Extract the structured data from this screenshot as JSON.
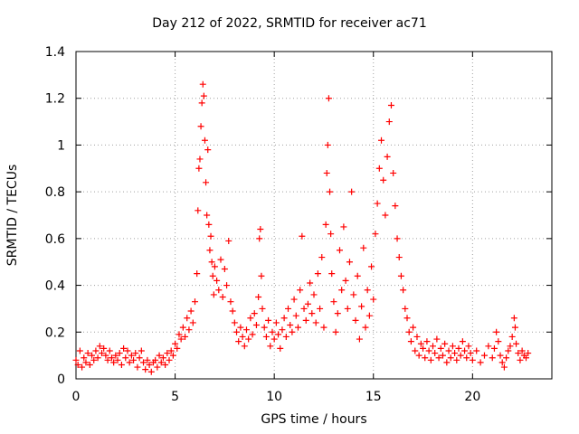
{
  "chart_data": {
    "type": "scatter",
    "title": "Day 212 of 2022, SRMTID for receiver ac71",
    "xlabel": "GPS time / hours",
    "ylabel": "SRMTID / TECUs",
    "xlim": [
      0,
      24
    ],
    "ylim": [
      0,
      1.4
    ],
    "xticks": [
      0,
      5,
      10,
      15,
      20
    ],
    "yticks": [
      0,
      0.2,
      0.4,
      0.6,
      0.8,
      1,
      1.2,
      1.4
    ],
    "ytick_labels": [
      "0",
      "0.2",
      "0.4",
      "0.6",
      "0.8",
      "1",
      "1.2",
      "1.4"
    ],
    "grid": true,
    "marker": "+",
    "color": "#ff0000",
    "series": [
      {
        "name": "SRMTID",
        "points": [
          [
            0.0,
            0.08
          ],
          [
            0.1,
            0.06
          ],
          [
            0.2,
            0.12
          ],
          [
            0.3,
            0.05
          ],
          [
            0.4,
            0.09
          ],
          [
            0.5,
            0.07
          ],
          [
            0.6,
            0.11
          ],
          [
            0.7,
            0.06
          ],
          [
            0.8,
            0.1
          ],
          [
            0.9,
            0.08
          ],
          [
            1.0,
            0.12
          ],
          [
            1.1,
            0.09
          ],
          [
            1.2,
            0.14
          ],
          [
            1.3,
            0.11
          ],
          [
            1.4,
            0.13
          ],
          [
            1.5,
            0.1
          ],
          [
            1.6,
            0.08
          ],
          [
            1.7,
            0.12
          ],
          [
            1.8,
            0.09
          ],
          [
            1.9,
            0.07
          ],
          [
            2.0,
            0.1
          ],
          [
            2.1,
            0.08
          ],
          [
            2.2,
            0.11
          ],
          [
            2.3,
            0.06
          ],
          [
            2.4,
            0.13
          ],
          [
            2.5,
            0.09
          ],
          [
            2.6,
            0.12
          ],
          [
            2.7,
            0.07
          ],
          [
            2.8,
            0.1
          ],
          [
            2.9,
            0.08
          ],
          [
            3.0,
            0.11
          ],
          [
            3.1,
            0.05
          ],
          [
            3.2,
            0.09
          ],
          [
            3.3,
            0.12
          ],
          [
            3.4,
            0.07
          ],
          [
            3.5,
            0.04
          ],
          [
            3.6,
            0.08
          ],
          [
            3.7,
            0.06
          ],
          [
            3.8,
            0.03
          ],
          [
            3.9,
            0.07
          ],
          [
            4.0,
            0.08
          ],
          [
            4.1,
            0.05
          ],
          [
            4.2,
            0.1
          ],
          [
            4.3,
            0.07
          ],
          [
            4.4,
            0.09
          ],
          [
            4.5,
            0.06
          ],
          [
            4.6,
            0.11
          ],
          [
            4.7,
            0.08
          ],
          [
            4.8,
            0.12
          ],
          [
            4.9,
            0.1
          ],
          [
            5.0,
            0.15
          ],
          [
            5.1,
            0.13
          ],
          [
            5.2,
            0.19
          ],
          [
            5.3,
            0.17
          ],
          [
            5.4,
            0.22
          ],
          [
            5.5,
            0.18
          ],
          [
            5.6,
            0.26
          ],
          [
            5.7,
            0.21
          ],
          [
            5.8,
            0.29
          ],
          [
            5.9,
            0.24
          ],
          [
            6.0,
            0.33
          ],
          [
            6.1,
            0.45
          ],
          [
            6.15,
            0.72
          ],
          [
            6.2,
            0.9
          ],
          [
            6.25,
            0.94
          ],
          [
            6.3,
            1.08
          ],
          [
            6.35,
            1.18
          ],
          [
            6.4,
            1.26
          ],
          [
            6.45,
            1.21
          ],
          [
            6.5,
            1.02
          ],
          [
            6.55,
            0.84
          ],
          [
            6.6,
            0.7
          ],
          [
            6.65,
            0.98
          ],
          [
            6.7,
            0.66
          ],
          [
            6.75,
            0.55
          ],
          [
            6.8,
            0.61
          ],
          [
            6.85,
            0.5
          ],
          [
            6.9,
            0.44
          ],
          [
            6.95,
            0.36
          ],
          [
            7.0,
            0.48
          ],
          [
            7.1,
            0.42
          ],
          [
            7.2,
            0.38
          ],
          [
            7.3,
            0.51
          ],
          [
            7.4,
            0.35
          ],
          [
            7.5,
            0.47
          ],
          [
            7.6,
            0.4
          ],
          [
            7.7,
            0.59
          ],
          [
            7.8,
            0.33
          ],
          [
            7.9,
            0.29
          ],
          [
            8.0,
            0.24
          ],
          [
            8.1,
            0.2
          ],
          [
            8.2,
            0.16
          ],
          [
            8.3,
            0.22
          ],
          [
            8.4,
            0.18
          ],
          [
            8.5,
            0.14
          ],
          [
            8.6,
            0.21
          ],
          [
            8.7,
            0.17
          ],
          [
            8.8,
            0.26
          ],
          [
            8.9,
            0.19
          ],
          [
            9.0,
            0.28
          ],
          [
            9.1,
            0.23
          ],
          [
            9.2,
            0.35
          ],
          [
            9.25,
            0.6
          ],
          [
            9.3,
            0.64
          ],
          [
            9.35,
            0.44
          ],
          [
            9.4,
            0.3
          ],
          [
            9.5,
            0.22
          ],
          [
            9.6,
            0.18
          ],
          [
            9.7,
            0.25
          ],
          [
            9.8,
            0.14
          ],
          [
            9.9,
            0.2
          ],
          [
            10.0,
            0.17
          ],
          [
            10.1,
            0.24
          ],
          [
            10.2,
            0.19
          ],
          [
            10.3,
            0.13
          ],
          [
            10.4,
            0.21
          ],
          [
            10.5,
            0.26
          ],
          [
            10.6,
            0.18
          ],
          [
            10.7,
            0.3
          ],
          [
            10.8,
            0.23
          ],
          [
            10.9,
            0.2
          ],
          [
            11.0,
            0.34
          ],
          [
            11.1,
            0.27
          ],
          [
            11.2,
            0.22
          ],
          [
            11.3,
            0.38
          ],
          [
            11.4,
            0.61
          ],
          [
            11.5,
            0.3
          ],
          [
            11.6,
            0.25
          ],
          [
            11.7,
            0.32
          ],
          [
            11.8,
            0.41
          ],
          [
            11.9,
            0.28
          ],
          [
            12.0,
            0.36
          ],
          [
            12.1,
            0.24
          ],
          [
            12.2,
            0.45
          ],
          [
            12.3,
            0.3
          ],
          [
            12.4,
            0.52
          ],
          [
            12.5,
            0.22
          ],
          [
            12.6,
            0.66
          ],
          [
            12.65,
            0.88
          ],
          [
            12.7,
            1.0
          ],
          [
            12.75,
            1.2
          ],
          [
            12.8,
            0.8
          ],
          [
            12.85,
            0.62
          ],
          [
            12.9,
            0.45
          ],
          [
            13.0,
            0.33
          ],
          [
            13.1,
            0.2
          ],
          [
            13.2,
            0.28
          ],
          [
            13.3,
            0.55
          ],
          [
            13.4,
            0.38
          ],
          [
            13.5,
            0.65
          ],
          [
            13.6,
            0.42
          ],
          [
            13.7,
            0.3
          ],
          [
            13.8,
            0.5
          ],
          [
            13.9,
            0.8
          ],
          [
            14.0,
            0.36
          ],
          [
            14.1,
            0.25
          ],
          [
            14.2,
            0.44
          ],
          [
            14.3,
            0.17
          ],
          [
            14.4,
            0.31
          ],
          [
            14.5,
            0.56
          ],
          [
            14.6,
            0.22
          ],
          [
            14.7,
            0.38
          ],
          [
            14.8,
            0.27
          ],
          [
            14.9,
            0.48
          ],
          [
            15.0,
            0.34
          ],
          [
            15.1,
            0.62
          ],
          [
            15.2,
            0.75
          ],
          [
            15.3,
            0.9
          ],
          [
            15.4,
            1.02
          ],
          [
            15.5,
            0.85
          ],
          [
            15.6,
            0.7
          ],
          [
            15.7,
            0.95
          ],
          [
            15.8,
            1.1
          ],
          [
            15.9,
            1.17
          ],
          [
            16.0,
            0.88
          ],
          [
            16.1,
            0.74
          ],
          [
            16.2,
            0.6
          ],
          [
            16.3,
            0.52
          ],
          [
            16.4,
            0.44
          ],
          [
            16.5,
            0.38
          ],
          [
            16.6,
            0.3
          ],
          [
            16.7,
            0.26
          ],
          [
            16.8,
            0.2
          ],
          [
            16.9,
            0.16
          ],
          [
            17.0,
            0.22
          ],
          [
            17.1,
            0.12
          ],
          [
            17.2,
            0.18
          ],
          [
            17.3,
            0.1
          ],
          [
            17.4,
            0.15
          ],
          [
            17.5,
            0.13
          ],
          [
            17.6,
            0.09
          ],
          [
            17.7,
            0.16
          ],
          [
            17.8,
            0.12
          ],
          [
            17.9,
            0.08
          ],
          [
            18.0,
            0.14
          ],
          [
            18.1,
            0.11
          ],
          [
            18.2,
            0.17
          ],
          [
            18.3,
            0.09
          ],
          [
            18.4,
            0.13
          ],
          [
            18.5,
            0.1
          ],
          [
            18.6,
            0.15
          ],
          [
            18.7,
            0.07
          ],
          [
            18.8,
            0.12
          ],
          [
            18.9,
            0.09
          ],
          [
            19.0,
            0.14
          ],
          [
            19.1,
            0.11
          ],
          [
            19.2,
            0.08
          ],
          [
            19.3,
            0.13
          ],
          [
            19.4,
            0.1
          ],
          [
            19.5,
            0.16
          ],
          [
            19.6,
            0.12
          ],
          [
            19.7,
            0.09
          ],
          [
            19.8,
            0.14
          ],
          [
            19.9,
            0.11
          ],
          [
            20.0,
            0.08
          ],
          [
            20.2,
            0.12
          ],
          [
            20.4,
            0.07
          ],
          [
            20.6,
            0.1
          ],
          [
            20.8,
            0.14
          ],
          [
            21.0,
            0.09
          ],
          [
            21.1,
            0.13
          ],
          [
            21.2,
            0.2
          ],
          [
            21.3,
            0.16
          ],
          [
            21.4,
            0.1
          ],
          [
            21.5,
            0.07
          ],
          [
            21.6,
            0.05
          ],
          [
            21.7,
            0.09
          ],
          [
            21.8,
            0.12
          ],
          [
            21.9,
            0.14
          ],
          [
            22.0,
            0.18
          ],
          [
            22.1,
            0.26
          ],
          [
            22.15,
            0.22
          ],
          [
            22.2,
            0.15
          ],
          [
            22.3,
            0.11
          ],
          [
            22.4,
            0.08
          ],
          [
            22.5,
            0.12
          ],
          [
            22.6,
            0.1
          ],
          [
            22.7,
            0.09
          ],
          [
            22.8,
            0.11
          ]
        ]
      }
    ]
  }
}
